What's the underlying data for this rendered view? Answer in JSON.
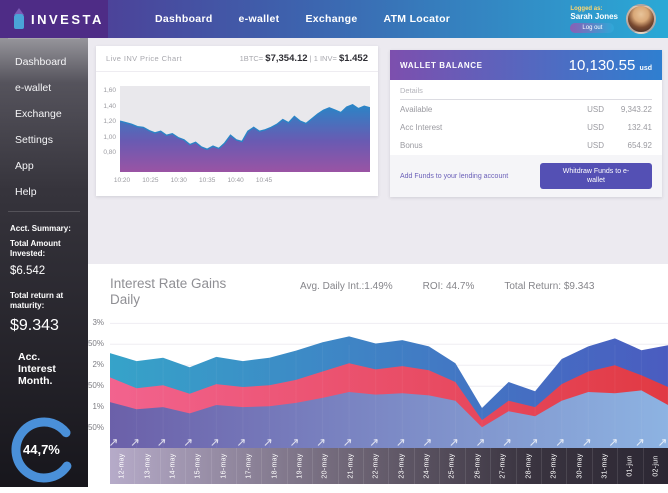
{
  "header": {
    "logo_text": "INVESTA",
    "nav": [
      {
        "label": "Dashboard"
      },
      {
        "label": "e-wallet"
      },
      {
        "label": "Exchange"
      },
      {
        "label": "ATM Locator"
      }
    ],
    "user": {
      "logged_as": "Logged as:",
      "name": "Sarah Jones",
      "logout_label": "Log out"
    }
  },
  "sidebar": {
    "menu": [
      "Dashboard",
      "e-wallet",
      "Exchange",
      "Settings",
      "App",
      "Help"
    ],
    "summary_heading": "Acct. Summary:",
    "invested_label": "Total Amount Invested:",
    "invested_value": "$6.542",
    "return_label": "Total return at maturity:",
    "return_value": "$9.343",
    "interest_label": "Acc. Interest Month.",
    "interest_value": "44,7%",
    "donut_color": "#4a90d9"
  },
  "wallet": {
    "title": "WALLET BALANCE",
    "balance": "10,130.55",
    "currency": "usd",
    "details_label": "Details",
    "rows": [
      {
        "label": "Available",
        "currency": "USD",
        "value": "9,343.22"
      },
      {
        "label": "Acc Interest",
        "currency": "USD",
        "value": "132.41"
      },
      {
        "label": "Bonus",
        "currency": "USD",
        "value": "654.92"
      }
    ],
    "add_funds_text": "Add Funds to your lending account",
    "withdraw_button": "Whitdraw Funds to e-wallet"
  },
  "live_header": {
    "title": "Live INV Price Chart",
    "btc_label": "1BTC=",
    "btc_value": "$7,354.12",
    "separator": "|",
    "inv_label": "1 INV=",
    "inv_value": "$1.452"
  },
  "interest_section": {
    "title": "Interest Rate Gains Daily",
    "stats": [
      "Avg. Daily Int.:1.49%",
      "ROI: 44.7%",
      "Total Return: $9.343"
    ]
  },
  "colors": {
    "header_gradient": [
      "#54318e",
      "#3d63ae",
      "#2aa9d6"
    ],
    "wallet_header_gradient": [
      "#7d4fae",
      "#2f7fd0"
    ],
    "withdraw_button_bg": "#5450b4",
    "donut": "#4a90d9"
  },
  "chart_data": [
    {
      "id": "live_inv_price",
      "type": "area",
      "title": "Live INV Price Chart",
      "info": "1BTC= $7,354.12 | 1 INV= $1.452",
      "x_ticks": [
        "10:20",
        "10:25",
        "10:30",
        "10:35",
        "10:40",
        "10:45"
      ],
      "y_ticks": [
        "1,60",
        "1,40",
        "1,20",
        "1,00",
        "0,80"
      ],
      "y_tick_values": [
        1.6,
        1.4,
        1.2,
        1.0,
        0.8
      ],
      "ylim": [
        0.55,
        1.65
      ],
      "line_color": "#2b84c6",
      "fill_gradient": [
        "#2b84c6",
        "#6a5ab2",
        "#9a54a4"
      ],
      "values": [
        1.2,
        1.18,
        1.16,
        1.13,
        1.12,
        1.08,
        1.05,
        1.07,
        1.02,
        1.04,
        0.99,
        0.96,
        0.9,
        0.93,
        0.87,
        0.84,
        0.88,
        0.85,
        0.92,
        1.02,
        0.96,
        0.94,
        1.07,
        1.12,
        1.07,
        1.09,
        1.12,
        1.16,
        1.22,
        1.18,
        1.26,
        1.2,
        1.17,
        1.23,
        1.29,
        1.34,
        1.37,
        1.34,
        1.31,
        1.38,
        1.41,
        1.36,
        1.39,
        1.37
      ]
    },
    {
      "id": "interest_rate_gains_daily",
      "type": "area-stacked",
      "title": "Interest Rate Gains Daily",
      "stats": {
        "avg_daily_interest": "1.49%",
        "roi": "44.7%",
        "total_return": "$9.343"
      },
      "categories": [
        "12-may",
        "13-may",
        "14-may",
        "15-may",
        "16-may",
        "17-may",
        "18-may",
        "19-may",
        "20-may",
        "21-may",
        "22-may",
        "23-may",
        "24-may",
        "25-may",
        "26-may",
        "27-may",
        "28-may",
        "29-may",
        "30-may",
        "31-may",
        "01-jun",
        "02-jun"
      ],
      "y_ticks": [
        "3%",
        "2,50%",
        "2%",
        "1,50%",
        "1%",
        "0,50%"
      ],
      "y_tick_values": [
        3,
        2.5,
        2,
        1.5,
        1,
        0.5
      ],
      "ylim": [
        0,
        3.2
      ],
      "grid": true,
      "stacked_cumulative": true,
      "series": [
        {
          "name": "base",
          "boundary": [
            1.12,
            0.95,
            1.0,
            0.85,
            1.05,
            1.0,
            1.02,
            1.1,
            1.22,
            1.36,
            1.3,
            1.33,
            1.28,
            1.15,
            0.52,
            0.9,
            0.78,
            1.15,
            1.36,
            1.33,
            1.4,
            1.05
          ],
          "gradient": [
            "#6b60a9",
            "#8db3e2"
          ]
        },
        {
          "name": "mid",
          "boundary": [
            1.71,
            1.45,
            1.52,
            1.32,
            1.55,
            1.48,
            1.52,
            1.65,
            1.85,
            2.05,
            1.9,
            1.98,
            1.88,
            1.6,
            0.69,
            1.15,
            1.0,
            1.55,
            1.85,
            2.0,
            1.76,
            1.48
          ],
          "gradient": [
            "#f2638e",
            "#e13a43"
          ]
        },
        {
          "name": "total",
          "boundary": [
            2.29,
            2.1,
            2.18,
            1.95,
            2.2,
            2.1,
            2.18,
            2.35,
            2.55,
            2.69,
            2.52,
            2.6,
            2.45,
            2.05,
            0.98,
            1.6,
            1.38,
            2.15,
            2.45,
            2.64,
            2.36,
            2.48
          ],
          "gradient": [
            "#36a3c9",
            "#4a5cc0"
          ]
        }
      ]
    }
  ]
}
